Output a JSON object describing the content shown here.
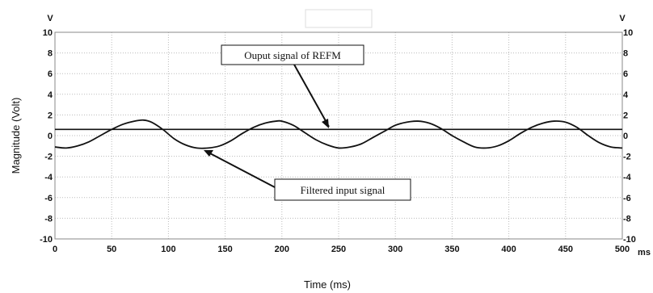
{
  "chart_data": {
    "type": "line",
    "xlabel": "Time (ms)",
    "ylabel": "Magnitude (Volt)",
    "x_unit": "ms",
    "y_unit_left": "V",
    "y_unit_right": "V",
    "xlim": [
      0,
      500
    ],
    "ylim": [
      -10,
      10
    ],
    "x_ticks": [
      0,
      50,
      100,
      150,
      200,
      250,
      300,
      350,
      400,
      450,
      500
    ],
    "y_ticks": [
      10,
      8,
      6,
      4,
      2,
      0,
      -2,
      -4,
      -6,
      -8,
      -10
    ],
    "x_tick_labels": [
      "0",
      "50",
      "100",
      "150",
      "200",
      "250",
      "300",
      "350",
      "400",
      "450",
      "500"
    ],
    "y_tick_labels": [
      "10",
      "8",
      "6",
      "4",
      "2",
      "0",
      "-2",
      "-4",
      "-6",
      "-8",
      "-10"
    ],
    "grid": true,
    "series": [
      {
        "name": "Ouput signal of REFM",
        "color": "#111111",
        "x": [
          0,
          500
        ],
        "y": [
          0.6,
          0.6
        ]
      },
      {
        "name": "Filtered input signal",
        "color": "#111111",
        "x": [
          0,
          10,
          20,
          30,
          40,
          50,
          60,
          70,
          78,
          85,
          95,
          105,
          115,
          125,
          135,
          145,
          155,
          165,
          175,
          185,
          195,
          200,
          210,
          220,
          230,
          240,
          250,
          260,
          270,
          280,
          290,
          300,
          310,
          320,
          330,
          340,
          350,
          360,
          370,
          380,
          390,
          400,
          410,
          420,
          430,
          440,
          450,
          460,
          470,
          480,
          490,
          500
        ],
        "y": [
          -1.1,
          -1.2,
          -1.0,
          -0.6,
          0.0,
          0.6,
          1.1,
          1.4,
          1.5,
          1.3,
          0.6,
          -0.3,
          -0.9,
          -1.2,
          -1.2,
          -1.0,
          -0.5,
          0.2,
          0.8,
          1.2,
          1.4,
          1.4,
          1.0,
          0.3,
          -0.4,
          -0.9,
          -1.2,
          -1.1,
          -0.8,
          -0.2,
          0.4,
          1.0,
          1.3,
          1.4,
          1.2,
          0.7,
          0.0,
          -0.6,
          -1.1,
          -1.2,
          -1.0,
          -0.5,
          0.2,
          0.8,
          1.2,
          1.4,
          1.3,
          0.8,
          0.0,
          -0.7,
          -1.1,
          -1.2
        ]
      }
    ],
    "annotations": [
      {
        "text": "Ouput signal of REFM",
        "target_x": 243,
        "target_y": 0.6
      },
      {
        "text": "Filtered input signal",
        "target_x": 130,
        "target_y": -1.1
      }
    ]
  }
}
